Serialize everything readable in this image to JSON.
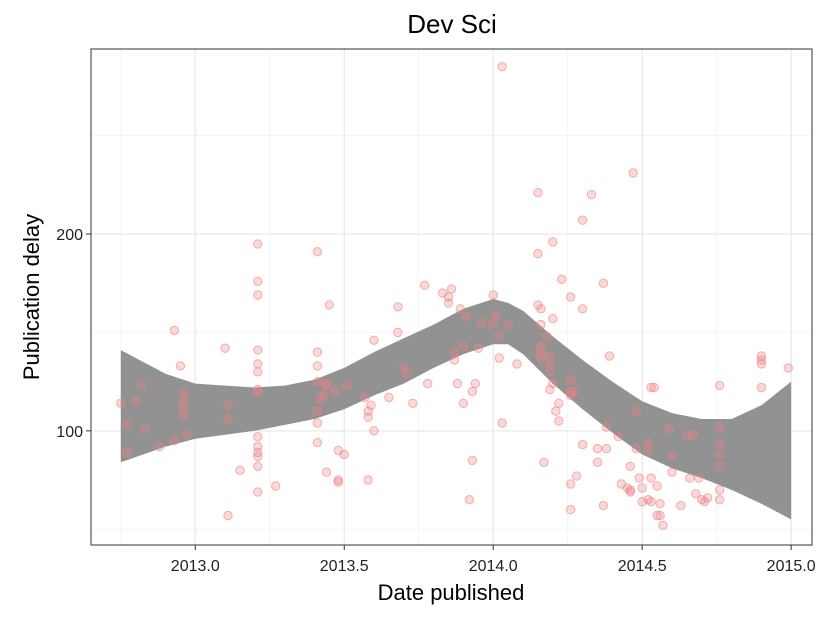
{
  "chart_data": {
    "type": "scatter",
    "title": "Dev Sci",
    "xlabel": "Date published",
    "ylabel": "Publication delay",
    "xlim": [
      2012.65,
      2015.07
    ],
    "ylim": [
      42,
      294
    ],
    "xticks": [
      2013.0,
      2013.5,
      2014.0,
      2014.5,
      2015.0
    ],
    "xtick_labels": [
      "2013.0",
      "2013.5",
      "2014.0",
      "2014.5",
      "2015.0"
    ],
    "yticks": [
      100,
      200
    ],
    "ytick_labels": [
      "100",
      "200"
    ],
    "grid": true,
    "point_color": "#f08080",
    "band_color": "#8c8c8c",
    "points": [
      [
        2012.75,
        114
      ],
      [
        2012.77,
        103
      ],
      [
        2012.77,
        89
      ],
      [
        2012.8,
        115
      ],
      [
        2012.82,
        123
      ],
      [
        2012.83,
        101
      ],
      [
        2012.88,
        92
      ],
      [
        2012.93,
        151
      ],
      [
        2012.93,
        95
      ],
      [
        2012.95,
        133
      ],
      [
        2012.96,
        115
      ],
      [
        2012.96,
        119
      ],
      [
        2012.96,
        112
      ],
      [
        2012.96,
        108
      ],
      [
        2012.97,
        98
      ],
      [
        2013.1,
        142
      ],
      [
        2013.11,
        113
      ],
      [
        2013.11,
        106
      ],
      [
        2013.11,
        57
      ],
      [
        2013.15,
        80
      ],
      [
        2013.21,
        195
      ],
      [
        2013.21,
        176
      ],
      [
        2013.21,
        169
      ],
      [
        2013.21,
        141
      ],
      [
        2013.21,
        134
      ],
      [
        2013.21,
        130
      ],
      [
        2013.21,
        121
      ],
      [
        2013.21,
        120
      ],
      [
        2013.21,
        97
      ],
      [
        2013.21,
        92
      ],
      [
        2013.21,
        89
      ],
      [
        2013.21,
        87
      ],
      [
        2013.21,
        82
      ],
      [
        2013.21,
        69
      ],
      [
        2013.27,
        72
      ],
      [
        2013.41,
        191
      ],
      [
        2013.41,
        140
      ],
      [
        2013.41,
        133
      ],
      [
        2013.41,
        125
      ],
      [
        2013.41,
        110
      ],
      [
        2013.41,
        104
      ],
      [
        2013.41,
        94
      ],
      [
        2013.42,
        116
      ],
      [
        2013.43,
        118
      ],
      [
        2013.44,
        124
      ],
      [
        2013.44,
        123
      ],
      [
        2013.44,
        79
      ],
      [
        2013.45,
        164
      ],
      [
        2013.47,
        120
      ],
      [
        2013.48,
        90
      ],
      [
        2013.48,
        75
      ],
      [
        2013.48,
        74
      ],
      [
        2013.5,
        88
      ],
      [
        2013.51,
        123
      ],
      [
        2013.57,
        117
      ],
      [
        2013.58,
        110
      ],
      [
        2013.58,
        107
      ],
      [
        2013.58,
        75
      ],
      [
        2013.59,
        113
      ],
      [
        2013.6,
        146
      ],
      [
        2013.6,
        100
      ],
      [
        2013.65,
        117
      ],
      [
        2013.68,
        150
      ],
      [
        2013.68,
        163
      ],
      [
        2013.7,
        132
      ],
      [
        2013.71,
        129
      ],
      [
        2013.73,
        114
      ],
      [
        2013.77,
        174
      ],
      [
        2013.78,
        124
      ],
      [
        2013.83,
        170
      ],
      [
        2013.85,
        168
      ],
      [
        2013.85,
        165
      ],
      [
        2013.86,
        172
      ],
      [
        2013.87,
        140
      ],
      [
        2013.87,
        136
      ],
      [
        2013.88,
        124
      ],
      [
        2013.89,
        162
      ],
      [
        2013.9,
        143
      ],
      [
        2013.9,
        114
      ],
      [
        2013.91,
        158
      ],
      [
        2013.92,
        65
      ],
      [
        2013.93,
        85
      ],
      [
        2013.93,
        120
      ],
      [
        2013.94,
        124
      ],
      [
        2013.95,
        142
      ],
      [
        2013.96,
        155
      ],
      [
        2014.0,
        169
      ],
      [
        2014.0,
        155
      ],
      [
        2014.01,
        159
      ],
      [
        2014.02,
        148
      ],
      [
        2014.02,
        137
      ],
      [
        2014.03,
        285
      ],
      [
        2014.03,
        104
      ],
      [
        2014.05,
        154
      ],
      [
        2014.08,
        134
      ],
      [
        2014.15,
        221
      ],
      [
        2014.15,
        190
      ],
      [
        2014.15,
        164
      ],
      [
        2014.16,
        162
      ],
      [
        2014.16,
        154
      ],
      [
        2014.16,
        143
      ],
      [
        2014.16,
        140
      ],
      [
        2014.16,
        137
      ],
      [
        2014.17,
        84
      ],
      [
        2014.18,
        148
      ],
      [
        2014.19,
        138
      ],
      [
        2014.19,
        134
      ],
      [
        2014.19,
        130
      ],
      [
        2014.19,
        121
      ],
      [
        2014.2,
        196
      ],
      [
        2014.2,
        157
      ],
      [
        2014.2,
        124
      ],
      [
        2014.21,
        110
      ],
      [
        2014.22,
        114
      ],
      [
        2014.22,
        105
      ],
      [
        2014.23,
        177
      ],
      [
        2014.26,
        168
      ],
      [
        2014.26,
        126
      ],
      [
        2014.26,
        120
      ],
      [
        2014.26,
        118
      ],
      [
        2014.26,
        73
      ],
      [
        2014.26,
        60
      ],
      [
        2014.27,
        120
      ],
      [
        2014.28,
        77
      ],
      [
        2014.3,
        162
      ],
      [
        2014.3,
        207
      ],
      [
        2014.3,
        93
      ],
      [
        2014.33,
        220
      ],
      [
        2014.35,
        84
      ],
      [
        2014.35,
        91
      ],
      [
        2014.37,
        175
      ],
      [
        2014.37,
        62
      ],
      [
        2014.38,
        91
      ],
      [
        2014.38,
        102
      ],
      [
        2014.39,
        138
      ],
      [
        2014.42,
        97
      ],
      [
        2014.43,
        73
      ],
      [
        2014.45,
        71
      ],
      [
        2014.46,
        70
      ],
      [
        2014.46,
        69
      ],
      [
        2014.46,
        82
      ],
      [
        2014.47,
        231
      ],
      [
        2014.48,
        110
      ],
      [
        2014.48,
        91
      ],
      [
        2014.49,
        76
      ],
      [
        2014.5,
        71
      ],
      [
        2014.5,
        64
      ],
      [
        2014.52,
        65
      ],
      [
        2014.52,
        94
      ],
      [
        2014.52,
        90
      ],
      [
        2014.53,
        76
      ],
      [
        2014.53,
        64
      ],
      [
        2014.53,
        122
      ],
      [
        2014.54,
        122
      ],
      [
        2014.55,
        72
      ],
      [
        2014.56,
        63
      ],
      [
        2014.55,
        57
      ],
      [
        2014.56,
        57
      ],
      [
        2014.57,
        52
      ],
      [
        2014.59,
        101
      ],
      [
        2014.6,
        88
      ],
      [
        2014.6,
        79
      ],
      [
        2014.63,
        62
      ],
      [
        2014.65,
        98
      ],
      [
        2014.66,
        76
      ],
      [
        2014.67,
        98
      ],
      [
        2014.68,
        68
      ],
      [
        2014.69,
        76
      ],
      [
        2014.7,
        65
      ],
      [
        2014.71,
        64
      ],
      [
        2014.72,
        66
      ],
      [
        2014.76,
        123
      ],
      [
        2014.76,
        102
      ],
      [
        2014.76,
        94
      ],
      [
        2014.76,
        88
      ],
      [
        2014.76,
        82
      ],
      [
        2014.76,
        70
      ],
      [
        2014.76,
        65
      ],
      [
        2014.9,
        138
      ],
      [
        2014.9,
        136
      ],
      [
        2014.9,
        134
      ],
      [
        2014.9,
        122
      ],
      [
        2014.99,
        132
      ]
    ],
    "band": {
      "x": [
        2012.75,
        2012.9,
        2013.0,
        2013.1,
        2013.2,
        2013.3,
        2013.4,
        2013.5,
        2013.6,
        2013.7,
        2013.8,
        2013.9,
        2014.0,
        2014.05,
        2014.1,
        2014.2,
        2014.3,
        2014.4,
        2014.5,
        2014.6,
        2014.7,
        2014.8,
        2014.9,
        2015.0
      ],
      "upper": [
        141,
        129,
        124,
        123,
        122,
        123,
        126,
        132,
        140,
        147,
        154,
        162,
        167,
        165,
        161,
        148,
        136,
        125,
        115,
        109,
        106,
        106,
        113,
        125
      ],
      "lower": [
        84,
        92,
        96,
        98,
        100,
        103,
        106,
        111,
        118,
        124,
        132,
        139,
        144,
        144,
        139,
        124,
        111,
        99,
        88,
        81,
        76,
        70,
        63,
        55
      ]
    }
  }
}
